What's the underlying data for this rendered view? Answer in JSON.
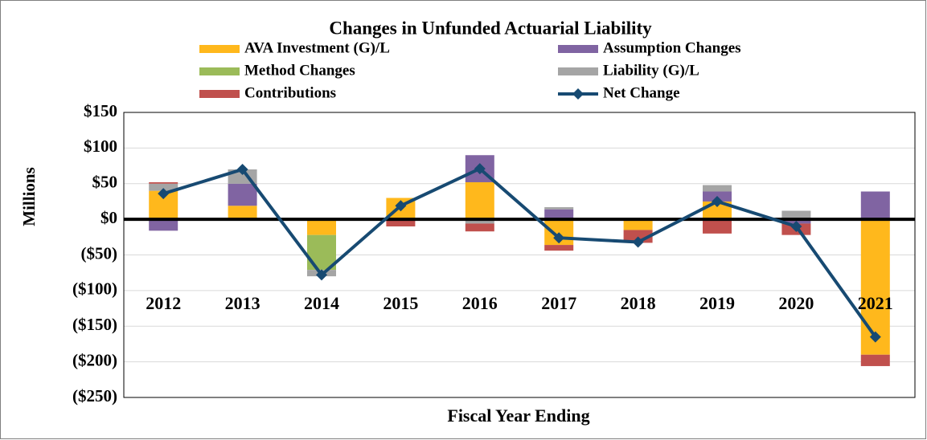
{
  "chart_data": {
    "type": "bar",
    "title": "Changes in Unfunded Actuarial Liability",
    "x_label": "Fiscal Year Ending",
    "y_label": "Millions",
    "categories": [
      "2012",
      "2013",
      "2014",
      "2015",
      "2016",
      "2017",
      "2018",
      "2019",
      "2020",
      "2021"
    ],
    "series": [
      {
        "name": "AVA Investment (G)/L",
        "color": "#ffb81c",
        "values": [
          40,
          19,
          -22,
          30,
          52,
          -36,
          -15,
          25,
          -2,
          -190
        ]
      },
      {
        "name": "Assumption Changes",
        "color": "#8064a2",
        "values": [
          -16,
          31,
          0,
          0,
          38,
          14,
          0,
          14,
          -4,
          39
        ]
      },
      {
        "name": "Method Changes",
        "color": "#9bbb59",
        "values": [
          0,
          0,
          -49,
          0,
          0,
          0,
          0,
          0,
          0,
          0
        ]
      },
      {
        "name": "Liability (G)/L",
        "color": "#a5a5a5",
        "values": [
          10,
          20,
          -9,
          0,
          -6,
          3,
          0,
          9,
          12,
          0
        ]
      },
      {
        "name": "Contributions",
        "color": "#c0504d",
        "values": [
          2,
          0,
          0,
          -10,
          -11,
          -8,
          -18,
          -20,
          -16,
          -16
        ]
      },
      {
        "name": "Net Change",
        "color": "#174a72",
        "type": "line",
        "values": [
          36,
          70,
          -78,
          19,
          71,
          -26,
          -32,
          25,
          -10,
          -165
        ]
      }
    ],
    "ylim": [
      -250,
      150
    ],
    "yticks": [
      {
        "value": 150,
        "label": "$150"
      },
      {
        "value": 100,
        "label": "$100"
      },
      {
        "value": 50,
        "label": "$50"
      },
      {
        "value": 0,
        "label": "$0"
      },
      {
        "value": -50,
        "label": "($50)"
      },
      {
        "value": -100,
        "label": "($100)"
      },
      {
        "value": -150,
        "label": "($150)"
      },
      {
        "value": -200,
        "label": "($200)"
      },
      {
        "value": -250,
        "label": "($250)"
      }
    ],
    "grid": true
  }
}
